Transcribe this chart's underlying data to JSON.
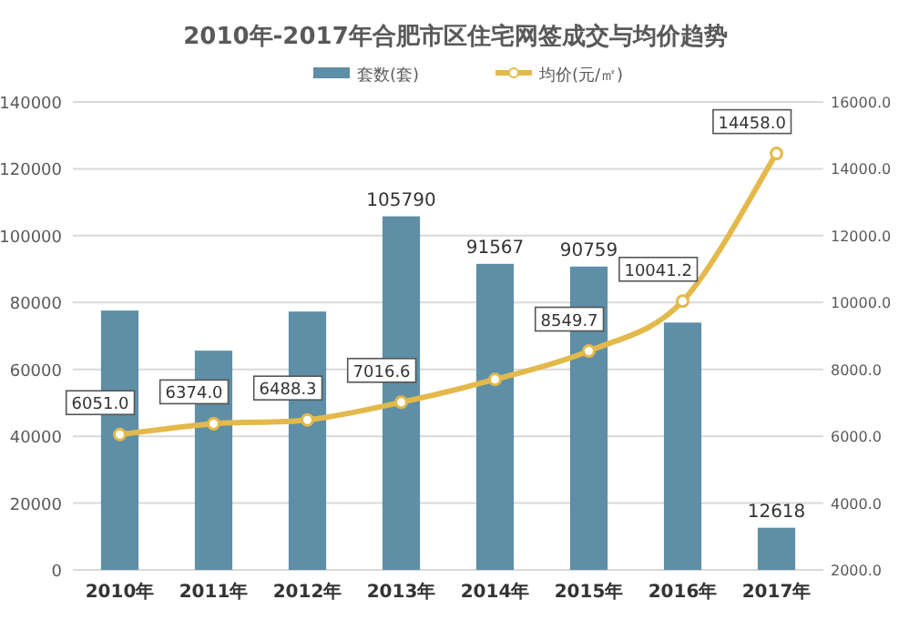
{
  "chart_data": {
    "type": "bar",
    "title": "2010年-2017年合肥市区住宅网签成交与均价趋势",
    "categories": [
      "2010年",
      "2011年",
      "2012年",
      "2013年",
      "2014年",
      "2015年",
      "2016年",
      "2017年"
    ],
    "series": [
      {
        "name": "套数(套)",
        "color": "#5e8fa6",
        "values": [
          77600,
          65600,
          77300,
          105790,
          91567,
          90759,
          74000,
          12618
        ],
        "value_labels": [
          null,
          null,
          null,
          "105790",
          "91567",
          "90759",
          null,
          "12618"
        ]
      },
      {
        "name": "均价(元/㎡)",
        "type": "line",
        "axis": "y2",
        "color": "#e3b94b",
        "marker": "circle",
        "values": [
          6051.0,
          6374.0,
          6488.3,
          7016.6,
          7700,
          8549.7,
          10041.2,
          14458.0
        ],
        "value_labels": [
          "6051.0",
          "6374.0",
          "6488.3",
          "7016.6",
          null,
          "8549.7",
          "10041.2",
          "14458.0"
        ]
      }
    ],
    "ylim": [
      0,
      140000
    ],
    "yticks": [
      0,
      20000,
      40000,
      60000,
      80000,
      100000,
      120000,
      140000
    ],
    "y2lim": [
      2000,
      16000
    ],
    "y2ticks": [
      {
        "value": 2000,
        "label": "2000.0"
      },
      {
        "value": 4000,
        "label": "4000.0"
      },
      {
        "value": 6000,
        "label": "6000.0"
      },
      {
        "value": 8000,
        "label": "8000.0"
      },
      {
        "value": 10000,
        "label": "10000.0"
      },
      {
        "value": 12000,
        "label": "12000.0"
      },
      {
        "value": 14000,
        "label": "14000.0"
      },
      {
        "value": 16000,
        "label": "16000.0"
      }
    ],
    "grid": "y",
    "legend": "top"
  }
}
